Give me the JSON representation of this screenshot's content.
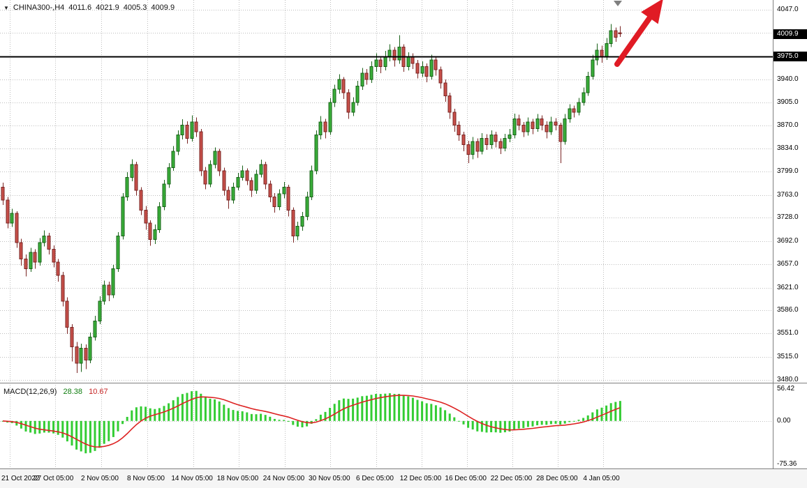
{
  "chart_data": {
    "type": "candlestick",
    "title": "CHINA300-,H4",
    "symbol_bar": {
      "dropdown_icon": "▼",
      "symbol_timeframe": "CHINA300-,H4",
      "open": "4011.6",
      "high": "4021.9",
      "low": "4005.3",
      "close": "4009.9"
    },
    "price_axis": {
      "labels": [
        "4047.0",
        "3940.0",
        "3905.0",
        "3870.0",
        "3834.0",
        "3799.0",
        "3763.0",
        "3728.0",
        "3692.0",
        "3657.0",
        "3621.0",
        "3586.0",
        "3551.0",
        "3515.0",
        "3480.0"
      ],
      "values": [
        4047,
        3940,
        3905,
        3870,
        3834,
        3799,
        3763,
        3728,
        3692,
        3657,
        3621,
        3586,
        3551,
        3515,
        3480
      ],
      "hidden_tick": 4011.4,
      "ylim": [
        3472,
        4062
      ]
    },
    "current_price": {
      "label": "4009.9",
      "value": 4009.9
    },
    "resistance_line": {
      "label": "3975.0",
      "value": 3975
    },
    "time_axis": {
      "labels": [
        {
          "text": "21 Oct 2022",
          "i": 1.5
        },
        {
          "text": "27 Oct 05:00",
          "i": 11.4
        },
        {
          "text": "2 Nov 05:00",
          "i": 21.3
        },
        {
          "text": "8 Nov 05:00",
          "i": 31.3
        },
        {
          "text": "14 Nov 05:00",
          "i": 41.3
        },
        {
          "text": "18 Nov 05:00",
          "i": 51.2
        },
        {
          "text": "24 Nov 05:00",
          "i": 61.2
        },
        {
          "text": "30 Nov 05:00",
          "i": 71.1
        },
        {
          "text": "6 Dec 05:00",
          "i": 81.0
        },
        {
          "text": "12 Dec 05:00",
          "i": 90.9
        },
        {
          "text": "16 Dec 05:00",
          "i": 100.7
        },
        {
          "text": "22 Dec 05:00",
          "i": 110.6
        },
        {
          "text": "28 Dec 05:00",
          "i": 120.5
        },
        {
          "text": "4 Jan 05:00",
          "i": 130.3
        }
      ]
    },
    "candles": [
      [
        3775,
        3782,
        3748,
        3755
      ],
      [
        3755,
        3760,
        3712,
        3720
      ],
      [
        3720,
        3742,
        3714,
        3735
      ],
      [
        3735,
        3738,
        3682,
        3690
      ],
      [
        3690,
        3696,
        3655,
        3665
      ],
      [
        3665,
        3672,
        3638,
        3650
      ],
      [
        3650,
        3682,
        3645,
        3675
      ],
      [
        3675,
        3680,
        3650,
        3660
      ],
      [
        3660,
        3697,
        3655,
        3690
      ],
      [
        3690,
        3709,
        3684,
        3700
      ],
      [
        3700,
        3705,
        3672,
        3680
      ],
      [
        3680,
        3686,
        3652,
        3660
      ],
      [
        3660,
        3665,
        3630,
        3640
      ],
      [
        3640,
        3645,
        3592,
        3600
      ],
      [
        3600,
        3606,
        3550,
        3560
      ],
      [
        3560,
        3565,
        3508,
        3530
      ],
      [
        3530,
        3538,
        3490,
        3505
      ],
      [
        3505,
        3535,
        3492,
        3528
      ],
      [
        3528,
        3534,
        3496,
        3510
      ],
      [
        3510,
        3552,
        3505,
        3545
      ],
      [
        3545,
        3578,
        3540,
        3570
      ],
      [
        3570,
        3608,
        3565,
        3600
      ],
      [
        3600,
        3632,
        3595,
        3625
      ],
      [
        3625,
        3630,
        3600,
        3610
      ],
      [
        3610,
        3656,
        3605,
        3650
      ],
      [
        3650,
        3706,
        3645,
        3700
      ],
      [
        3700,
        3766,
        3695,
        3760
      ],
      [
        3760,
        3798,
        3754,
        3790
      ],
      [
        3790,
        3818,
        3784,
        3810
      ],
      [
        3810,
        3814,
        3762,
        3770
      ],
      [
        3770,
        3775,
        3732,
        3740
      ],
      [
        3740,
        3746,
        3710,
        3720
      ],
      [
        3720,
        3724,
        3685,
        3695
      ],
      [
        3695,
        3718,
        3688,
        3710
      ],
      [
        3710,
        3752,
        3705,
        3745
      ],
      [
        3745,
        3786,
        3740,
        3780
      ],
      [
        3780,
        3812,
        3774,
        3805
      ],
      [
        3805,
        3838,
        3800,
        3830
      ],
      [
        3830,
        3862,
        3824,
        3855
      ],
      [
        3855,
        3879,
        3848,
        3870
      ],
      [
        3870,
        3876,
        3842,
        3850
      ],
      [
        3850,
        3885,
        3845,
        3875
      ],
      [
        3875,
        3882,
        3852,
        3860
      ],
      [
        3860,
        3864,
        3792,
        3800
      ],
      [
        3800,
        3806,
        3772,
        3780
      ],
      [
        3780,
        3816,
        3775,
        3810
      ],
      [
        3810,
        3836,
        3804,
        3830
      ],
      [
        3830,
        3834,
        3792,
        3800
      ],
      [
        3800,
        3805,
        3762,
        3770
      ],
      [
        3770,
        3776,
        3742,
        3755
      ],
      [
        3755,
        3782,
        3750,
        3775
      ],
      [
        3775,
        3797,
        3770,
        3790
      ],
      [
        3790,
        3808,
        3785,
        3800
      ],
      [
        3800,
        3804,
        3778,
        3785
      ],
      [
        3785,
        3790,
        3760,
        3770
      ],
      [
        3770,
        3802,
        3765,
        3795
      ],
      [
        3795,
        3817,
        3790,
        3810
      ],
      [
        3810,
        3814,
        3772,
        3780
      ],
      [
        3780,
        3785,
        3752,
        3760
      ],
      [
        3760,
        3766,
        3736,
        3745
      ],
      [
        3745,
        3772,
        3740,
        3765
      ],
      [
        3765,
        3783,
        3758,
        3775
      ],
      [
        3775,
        3779,
        3730,
        3740
      ],
      [
        3740,
        3744,
        3690,
        3700
      ],
      [
        3700,
        3722,
        3694,
        3715
      ],
      [
        3715,
        3737,
        3708,
        3730
      ],
      [
        3730,
        3768,
        3724,
        3760
      ],
      [
        3760,
        3808,
        3755,
        3800
      ],
      [
        3800,
        3862,
        3795,
        3855
      ],
      [
        3855,
        3884,
        3848,
        3875
      ],
      [
        3875,
        3880,
        3850,
        3860
      ],
      [
        3860,
        3912,
        3855,
        3905
      ],
      [
        3905,
        3932,
        3898,
        3925
      ],
      [
        3925,
        3948,
        3918,
        3940
      ],
      [
        3940,
        3944,
        3910,
        3920
      ],
      [
        3920,
        3925,
        3880,
        3890
      ],
      [
        3890,
        3913,
        3884,
        3905
      ],
      [
        3905,
        3938,
        3900,
        3930
      ],
      [
        3930,
        3958,
        3924,
        3950
      ],
      [
        3950,
        3956,
        3932,
        3940
      ],
      [
        3940,
        3968,
        3935,
        3960
      ],
      [
        3960,
        3980,
        3952,
        3970
      ],
      [
        3970,
        3976,
        3950,
        3960
      ],
      [
        3960,
        3984,
        3954,
        3975
      ],
      [
        3975,
        3994,
        3968,
        3985
      ],
      [
        3985,
        3990,
        3960,
        3970
      ],
      [
        3970,
        4008,
        3964,
        3990
      ],
      [
        3990,
        3994,
        3952,
        3960
      ],
      [
        3960,
        3982,
        3954,
        3975
      ],
      [
        3975,
        3980,
        3956,
        3965
      ],
      [
        3965,
        3970,
        3942,
        3950
      ],
      [
        3950,
        3968,
        3944,
        3960
      ],
      [
        3960,
        3965,
        3936,
        3945
      ],
      [
        3945,
        3978,
        3940,
        3970
      ],
      [
        3970,
        3974,
        3946,
        3955
      ],
      [
        3955,
        3960,
        3926,
        3935
      ],
      [
        3935,
        3940,
        3906,
        3915
      ],
      [
        3915,
        3920,
        3880,
        3890
      ],
      [
        3890,
        3895,
        3860,
        3870
      ],
      [
        3870,
        3876,
        3846,
        3855
      ],
      [
        3855,
        3860,
        3830,
        3840
      ],
      [
        3840,
        3846,
        3812,
        3825
      ],
      [
        3825,
        3852,
        3818,
        3845
      ],
      [
        3845,
        3850,
        3820,
        3830
      ],
      [
        3830,
        3858,
        3825,
        3850
      ],
      [
        3850,
        3856,
        3832,
        3840
      ],
      [
        3840,
        3862,
        3834,
        3855
      ],
      [
        3855,
        3860,
        3836,
        3845
      ],
      [
        3845,
        3850,
        3826,
        3835
      ],
      [
        3835,
        3857,
        3830,
        3850
      ],
      [
        3850,
        3864,
        3844,
        3855
      ],
      [
        3855,
        3888,
        3850,
        3880
      ],
      [
        3880,
        3886,
        3862,
        3870
      ],
      [
        3870,
        3875,
        3852,
        3860
      ],
      [
        3860,
        3882,
        3854,
        3875
      ],
      [
        3875,
        3880,
        3856,
        3865
      ],
      [
        3865,
        3887,
        3860,
        3880
      ],
      [
        3880,
        3885,
        3862,
        3870
      ],
      [
        3870,
        3876,
        3850,
        3860
      ],
      [
        3860,
        3883,
        3855,
        3875
      ],
      [
        3875,
        3881,
        3862,
        3870
      ],
      [
        3870,
        3874,
        3812,
        3845
      ],
      [
        3845,
        3887,
        3840,
        3880
      ],
      [
        3880,
        3902,
        3874,
        3895
      ],
      [
        3895,
        3900,
        3882,
        3890
      ],
      [
        3890,
        3912,
        3885,
        3905
      ],
      [
        3905,
        3928,
        3900,
        3920
      ],
      [
        3920,
        3952,
        3915,
        3945
      ],
      [
        3945,
        3978,
        3940,
        3970
      ],
      [
        3970,
        3995,
        3962,
        3985
      ],
      [
        3985,
        3992,
        3966,
        3975
      ],
      [
        3975,
        4004,
        3970,
        3995
      ],
      [
        3995,
        4025,
        3990,
        4015
      ],
      [
        4015,
        4020,
        3998,
        4005
      ],
      [
        4011.6,
        4021.9,
        4005.3,
        4009.9
      ]
    ],
    "macd": {
      "name": "MACD(12,26,9)",
      "fast": 12,
      "slow": 26,
      "signal_period": 9,
      "main_value": "28.38",
      "signal_value": "10.67",
      "axis_labels": [
        "56.42",
        "0.00",
        "-75.36"
      ],
      "axis_values": [
        56.42,
        0,
        -75.36
      ],
      "ylim": [
        -82,
        62
      ]
    },
    "annotations": {
      "trend_arrow": {
        "color": "#e01b24",
        "tail": [
          884,
          92
        ],
        "tip": [
          950,
          -2
        ],
        "head_len": 34,
        "head_halfw": 15
      },
      "shift_marker": {
        "x": 885
      }
    },
    "colors": {
      "background": "#ffffff",
      "grid": "#bdbdbd",
      "up_fill": "#3aaf3a",
      "up_stroke": "#176117",
      "down_fill": "#c7504a",
      "down_stroke": "#7a2423",
      "macd_hist": "#33cc33",
      "macd_signal": "#dd2222",
      "hline": "#000000",
      "box_bg": "#000000",
      "box_text": "#ffffff"
    }
  }
}
